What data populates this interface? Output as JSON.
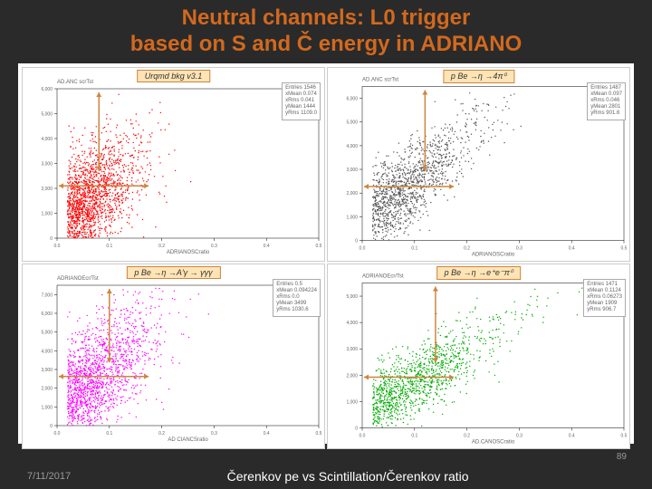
{
  "title_line1": "Neutral channels: L0 trigger",
  "title_line2": "based on S and Č energy in ADRIANO",
  "title_color": "#d2691e",
  "background_color": "#2a2a2a",
  "chart_bg": "#ffffff",
  "panels": {
    "tl": {
      "label": "Urqmd bkg v3.1",
      "color": "#ff0000",
      "stats": {
        "entries": "1546",
        "xmean": "0.074",
        "xrms": "0.041",
        "ymean": "1444",
        "yrms": "1109.0"
      },
      "n_points": 1800,
      "x_concentration": 0.08,
      "y_peak": 2200,
      "spread": 1.0,
      "ylabel": "AD.ANC scrTst",
      "xlabel": "ADRIANOSCratio",
      "ylim": [
        0,
        6000
      ],
      "xlim": [
        0.0,
        0.5
      ],
      "yticks": [
        0,
        1000,
        2000,
        3000,
        4000,
        5000,
        6000
      ],
      "xticks": [
        0.0,
        0.1,
        0.2,
        0.3,
        0.4,
        0.5
      ]
    },
    "tr": {
      "label": "p Be →η →4π⁰",
      "color": "#555555",
      "stats": {
        "entries": "1487",
        "xmean": "0.097",
        "xrms": "0.046",
        "ymean": "2801",
        "yrms": "901.6"
      },
      "n_points": 1300,
      "x_concentration": 0.12,
      "y_peak": 2800,
      "spread": 0.6,
      "ylabel": "AD.ANC scrTst",
      "xlabel": "ADRIANOSCratio",
      "ylim": [
        0,
        6500
      ],
      "xlim": [
        0.0,
        0.5
      ],
      "yticks": [
        0,
        1000,
        2000,
        3000,
        4000,
        5000,
        6000
      ],
      "xticks": [
        0.0,
        0.1,
        0.2,
        0.3,
        0.4,
        0.5
      ]
    },
    "bl": {
      "label": "p Be →η →A'γ → γγγ",
      "color": "#ff00ff",
      "stats": {
        "entries": "0.5",
        "xmean": "0.094224",
        "xrms": "0.0",
        "ymean": "3499",
        "yrms": "1030.6"
      },
      "n_points": 1600,
      "x_concentration": 0.1,
      "y_peak": 3400,
      "spread": 0.9,
      "ylabel": "ADRIANOEcr/Tst",
      "xlabel": "AD CIANCSratio",
      "ylim": [
        0,
        7500
      ],
      "xlim": [
        0.0,
        0.5
      ],
      "yticks": [
        0,
        1000,
        2000,
        3000,
        4000,
        5000,
        6000,
        7000
      ],
      "xticks": [
        0.0,
        0.1,
        0.2,
        0.3,
        0.4,
        0.5
      ]
    },
    "br": {
      "label": "p Be →η →e⁺e⁻π⁰",
      "color": "#00aa00",
      "stats": {
        "entries": "1471",
        "xmean": "0.1124",
        "xrms": "0.06273",
        "ymean": "1909",
        "yrms": "906.7"
      },
      "n_points": 1200,
      "x_concentration": 0.14,
      "y_peak": 1900,
      "spread": 0.7,
      "ylabel": "ADRIANOEcr/Tst",
      "xlabel": "AD.CANOSCratio",
      "ylim": [
        0,
        5500
      ],
      "xlim": [
        0.0,
        0.5
      ],
      "yticks": [
        0,
        1000,
        2000,
        3000,
        4000,
        5000
      ],
      "xticks": [
        0.0,
        0.1,
        0.2,
        0.3,
        0.4,
        0.5
      ]
    }
  },
  "arrow_color": "#cd853f",
  "panel_label_bg": "#ffe4b5",
  "panel_label_border": "#cd853f",
  "footer": {
    "date": "7/11/2017",
    "caption": "Čerenkov pe vs Scintillation/Čerenkov ratio",
    "page_num": "89"
  }
}
